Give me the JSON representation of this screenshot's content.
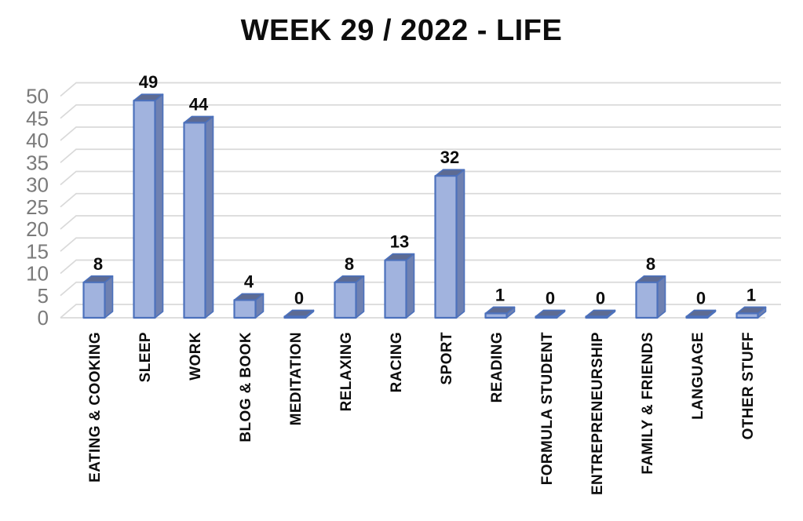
{
  "chart_data": {
    "type": "bar",
    "style": "3d",
    "title": "WEEK 29 / 2022 - LIFE",
    "xlabel": "",
    "ylabel": "",
    "categories": [
      "EATING & COOKING",
      "SLEEP",
      "WORK",
      "BLOG & BOOK",
      "MEDITATION",
      "RELAXING",
      "RACING",
      "SPORT",
      "READING",
      "FORMULA STUDENT",
      "ENTREPRENEURSHIP",
      "FAMILY & FRIENDS",
      "LANGUAGE",
      "OTHER STUFF"
    ],
    "values": [
      8,
      49,
      44,
      4,
      0,
      8,
      13,
      32,
      1,
      0,
      0,
      8,
      0,
      1
    ],
    "ylim": [
      0,
      50
    ],
    "yticks": [
      0,
      5,
      10,
      15,
      20,
      25,
      30,
      35,
      40,
      45,
      50
    ],
    "grid": true,
    "legend_position": "none",
    "data_labels": true,
    "colors": {
      "bar_front": "#A1B3DE",
      "bar_top": "#5D6B93",
      "bar_side": "#6F81B1",
      "bar_border": "#4C71BC",
      "gridline": "#D9D9D9",
      "axis_labels": "#7A7A7A",
      "data_labels": "#0D0D0D",
      "category_labels": "#0D0D0D",
      "title": "#0D0D0D",
      "background": "#FFFFFF"
    }
  }
}
